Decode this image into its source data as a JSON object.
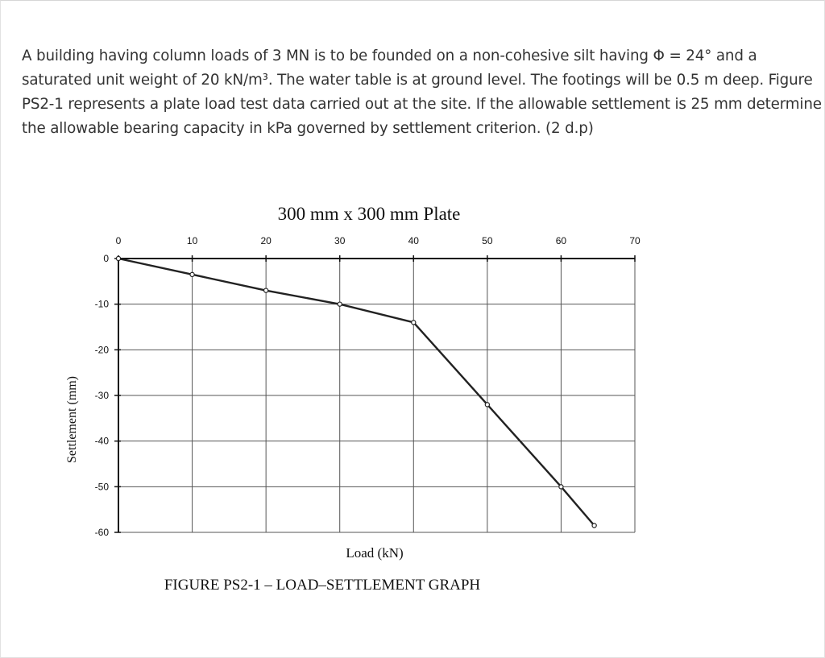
{
  "problem": {
    "lines": [
      "A building having column loads of 3 MN is to be founded on a non-cohesive silt having Φ  = 24° and a",
      "saturated unit weight of 20 kN/m³. The water table is at ground level. The footings will be 0.5 m deep. Figure",
      "PS2-1 represents a plate load test data carried out at the site. If the allowable settlement is 25 mm determine",
      "the allowable bearing capacity in kPa governed by settlement criterion. (2 d.p)"
    ]
  },
  "chart_data": {
    "type": "line",
    "title": "300 mm x 300 mm Plate",
    "xlabel": "Load (kN)",
    "ylabel": "Settlement  (mm)",
    "caption": "FIGURE PS2-1 – LOAD–SETTLEMENT GRAPH",
    "x_ticks": [
      "0",
      "10",
      "20",
      "30",
      "40",
      "50",
      "60",
      "70"
    ],
    "y_ticks": [
      "0",
      "-10",
      "-20",
      "-30",
      "-40",
      "-50",
      "-60"
    ],
    "xlim": [
      0,
      70
    ],
    "ylim": [
      -60,
      0
    ],
    "x_axis_position": "top",
    "grid": true,
    "series": [
      {
        "x": [
          0,
          10,
          20,
          30,
          40,
          50,
          60,
          64.5
        ],
        "y": [
          0,
          -3.5,
          -7,
          -10,
          -14,
          -32,
          -50,
          -58.5
        ]
      }
    ],
    "colors": {
      "line": "#222222",
      "grid": "#555555",
      "marker_fill": "#ffffff"
    }
  }
}
